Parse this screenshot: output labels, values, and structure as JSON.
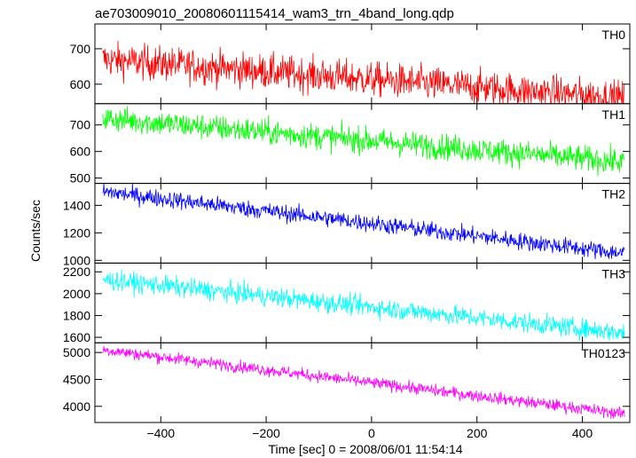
{
  "chart_data": {
    "type": "line",
    "title": "ae703009010_20080601115414_wam3_trn_4band_long.qdp",
    "xlabel": "Time [sec] 0 = 2008/06/01 11:54:14",
    "ylabel": "Counts/sec",
    "xlim": [
      -525,
      490
    ],
    "xticks": [
      -400,
      -200,
      0,
      200,
      400
    ],
    "x_range": [
      -510,
      480
    ],
    "grid": false,
    "series": [
      {
        "name": "TH0",
        "color": "#ff0000",
        "ylim": [
          545,
          770
        ],
        "yticks": [
          600,
          700
        ],
        "start": 670,
        "end": 560,
        "noise": 35
      },
      {
        "name": "TH1",
        "color": "#00ff00",
        "ylim": [
          480,
          780
        ],
        "yticks": [
          500,
          600,
          700
        ],
        "start": 725,
        "end": 560,
        "noise": 35
      },
      {
        "name": "TH2",
        "color": "#0000ff",
        "ylim": [
          980,
          1560
        ],
        "yticks": [
          1000,
          1200,
          1400
        ],
        "start": 1500,
        "end": 1050,
        "noise": 45
      },
      {
        "name": "TH3",
        "color": "#00ffff",
        "ylim": [
          1550,
          2280
        ],
        "yticks": [
          1600,
          1800,
          2000,
          2200
        ],
        "start": 2130,
        "end": 1640,
        "noise": 65
      },
      {
        "name": "TH0123",
        "color": "#ff00ff",
        "ylim": [
          3700,
          5180
        ],
        "yticks": [
          4000,
          4500,
          5000
        ],
        "start": 5050,
        "end": 3860,
        "noise": 80
      }
    ]
  }
}
